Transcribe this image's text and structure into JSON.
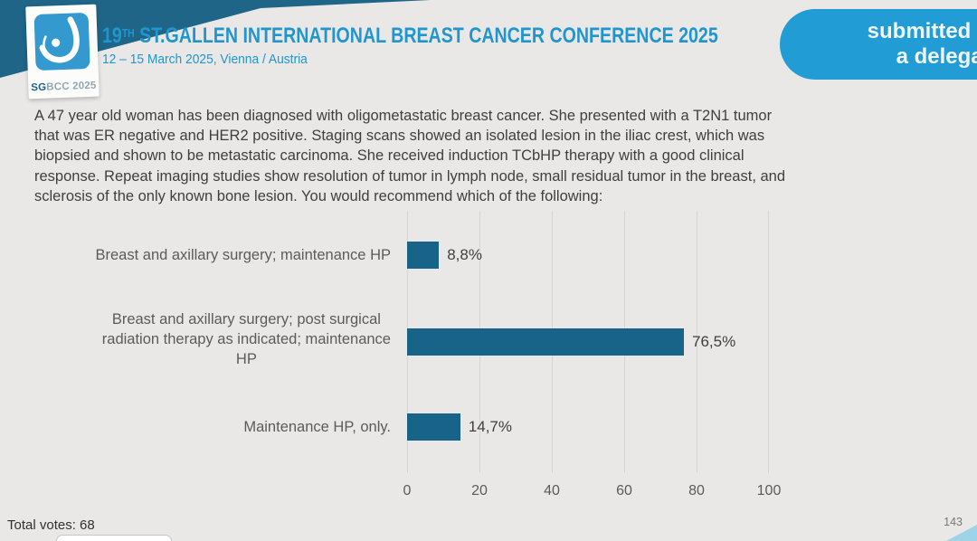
{
  "colors": {
    "background": "#e9e8e6",
    "teal_band": "#1e6588",
    "logo_blue": "#3399cf",
    "title_blue": "#2196ce",
    "badge_blue": "#229cd4",
    "bar_blue": "#176488"
  },
  "header": {
    "logo": {
      "icon": "sgbcc-breast-logo",
      "text_bold": "SG",
      "text_rest": "BCC 2025"
    },
    "title": {
      "number": "19",
      "ordinal": "TH",
      "rest": " ST.GALLEN INTERNATIONAL BREAST CANCER CONFERENCE 2025"
    },
    "subtitle": "12 – 15 March 2025, Vienna / Austria",
    "badge": {
      "line1": "submitted by",
      "line2": "a delegate"
    }
  },
  "question": {
    "lines": [
      "A 47 year old woman has been diagnosed with oligometastatic breast cancer.  She presented with a T2N1 tumor",
      "that was ER negative and HER2 positive.  Staging scans showed an isolated lesion in the iliac crest, which was",
      "biopsied and shown to be metastatic carcinoma.  She received induction TCbHP therapy with a good clinical",
      "response.  Repeat imaging studies show resolution of tumor in lymph node, small residual tumor in the breast, and",
      "sclerosis of the only known bone lesion.  You would recommend which of the following:"
    ]
  },
  "chart_data": {
    "type": "bar",
    "orientation": "horizontal",
    "title": "",
    "categories": [
      "Breast and axillary surgery; maintenance HP",
      "Breast and axillary surgery; post surgical radiation therapy as indicated; maintenance HP",
      "Maintenance HP, only."
    ],
    "category_lines": [
      [
        "Breast and axillary surgery; maintenance HP"
      ],
      [
        "Breast and axillary surgery; post surgical",
        "radiation therapy as indicated; maintenance",
        "HP"
      ],
      [
        "Maintenance HP, only."
      ]
    ],
    "values": [
      8.8,
      76.5,
      14.7
    ],
    "value_labels": [
      "8,8%",
      "76,5%",
      "14,7%"
    ],
    "xlim": [
      0,
      100
    ],
    "x_ticks": [
      "0",
      "20",
      "40",
      "60",
      "80",
      "100"
    ],
    "grid": true,
    "legend": false,
    "bar_color": "#176488"
  },
  "footer": {
    "total_votes": "Total votes: 68",
    "page_number": "143"
  }
}
